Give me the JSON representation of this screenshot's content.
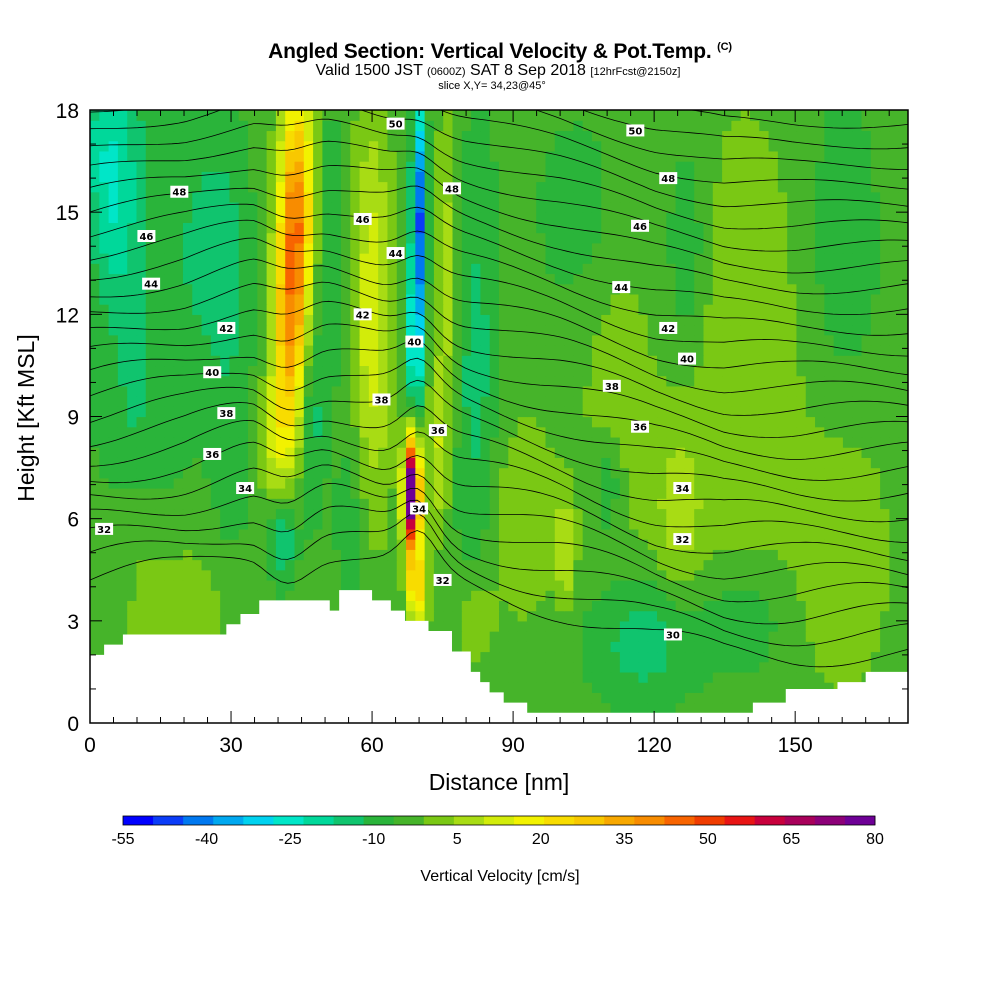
{
  "title": {
    "main": "Angled Section: Vertical Velocity & Pot.Temp.",
    "main_unit": "(C)",
    "valid_prefix": "Valid 1500 JST",
    "valid_utc": "(0600Z)",
    "valid_date": "SAT 8 Sep 2018",
    "forecast": "[12hrFcst@2150z]",
    "slice": "slice X,Y= 34,23@45°"
  },
  "chart_data": {
    "type": "heatmap",
    "title": "Angled Section: Vertical Velocity & Pot.Temp.",
    "xlabel": "Distance [nm]",
    "ylabel": "Height [Kft MSL]",
    "xlim": [
      0,
      174
    ],
    "ylim": [
      0,
      18
    ],
    "x_ticks": [
      0,
      30,
      60,
      90,
      120,
      150
    ],
    "y_ticks": [
      0,
      3,
      6,
      9,
      12,
      15,
      18
    ],
    "colorbar": {
      "label": "Vertical Velocity [cm/s]",
      "tick_values": [
        -55,
        -40,
        -25,
        -10,
        5,
        20,
        35,
        50,
        65,
        80
      ],
      "colors": [
        "#0000ff",
        "#0a3cf8",
        "#0078f0",
        "#00a8f0",
        "#00d2f0",
        "#00e6c8",
        "#00d89a",
        "#10c46e",
        "#2ab43a",
        "#46b42a",
        "#7ac814",
        "#a8dc14",
        "#d2ec0a",
        "#f2f200",
        "#f8dc00",
        "#f8c800",
        "#f8a800",
        "#f88c00",
        "#f86400",
        "#f03c00",
        "#e81414",
        "#c8003c",
        "#a8005a",
        "#8c0078",
        "#6e0096"
      ]
    },
    "wind_field": [
      {
        "x": 2,
        "y": 17.5,
        "w": -10,
        "sx": 8,
        "sy": 2.5
      },
      {
        "x": 15,
        "y": 13,
        "w": -6,
        "sx": 10,
        "sy": 7
      },
      {
        "x": 5,
        "y": 15,
        "w": -14,
        "sx": 5,
        "sy": 3
      },
      {
        "x": 8,
        "y": 8,
        "w": -6,
        "sx": 7,
        "sy": 4
      },
      {
        "x": 20,
        "y": 3,
        "w": 8,
        "sx": 14,
        "sy": 2.5
      },
      {
        "x": 9,
        "y": 6,
        "w": 6,
        "sx": 6,
        "sy": 2
      },
      {
        "x": 30,
        "y": 10,
        "w": -6,
        "sx": 5,
        "sy": 8
      },
      {
        "x": 26,
        "y": 14,
        "w": -8,
        "sx": 6,
        "sy": 3
      },
      {
        "x": 44,
        "y": 15,
        "w": 40,
        "sx": 3.5,
        "sy": 4
      },
      {
        "x": 42,
        "y": 11,
        "w": 28,
        "sx": 3.5,
        "sy": 4
      },
      {
        "x": 39,
        "y": 8,
        "w": 10,
        "sx": 3,
        "sy": 2
      },
      {
        "x": 41,
        "y": 5.5,
        "w": -18,
        "sx": 3,
        "sy": 1.5
      },
      {
        "x": 47,
        "y": 9,
        "w": -12,
        "sx": 2.5,
        "sy": 3
      },
      {
        "x": 51,
        "y": 14,
        "w": -8,
        "sx": 3,
        "sy": 4
      },
      {
        "x": 60,
        "y": 12,
        "w": 18,
        "sx": 4,
        "sy": 6
      },
      {
        "x": 56,
        "y": 6,
        "w": -6,
        "sx": 4,
        "sy": 3
      },
      {
        "x": 70,
        "y": 15,
        "w": -40,
        "sx": 1.5,
        "sy": 3.5
      },
      {
        "x": 69,
        "y": 11,
        "w": -25,
        "sx": 1.5,
        "sy": 2.5
      },
      {
        "x": 68.5,
        "y": 6.8,
        "w": 95,
        "sx": 1.7,
        "sy": 1.6
      },
      {
        "x": 69.5,
        "y": 4,
        "w": 30,
        "sx": 2,
        "sy": 1.2
      },
      {
        "x": 74,
        "y": 8,
        "w": 12,
        "sx": 2,
        "sy": 2.5
      },
      {
        "x": 76,
        "y": 13,
        "w": 12,
        "sx": 2.5,
        "sy": 5
      },
      {
        "x": 82,
        "y": 10,
        "w": -10,
        "sx": 5,
        "sy": 7
      },
      {
        "x": 82,
        "y": 3,
        "w": 10,
        "sx": 4,
        "sy": 1.5
      },
      {
        "x": 92,
        "y": 6,
        "w": 8,
        "sx": 8,
        "sy": 3
      },
      {
        "x": 101,
        "y": 5,
        "w": 14,
        "sx": 2,
        "sy": 1.5
      },
      {
        "x": 105,
        "y": 15,
        "w": -6,
        "sx": 10,
        "sy": 3
      },
      {
        "x": 112,
        "y": 10,
        "w": 6,
        "sx": 8,
        "sy": 6
      },
      {
        "x": 110,
        "y": 7,
        "w": -10,
        "sx": 3,
        "sy": 1.5
      },
      {
        "x": 118,
        "y": 2.5,
        "w": -12,
        "sx": 12,
        "sy": 2
      },
      {
        "x": 125,
        "y": 6,
        "w": 10,
        "sx": 6,
        "sy": 3
      },
      {
        "x": 127,
        "y": 14,
        "w": -8,
        "sx": 4,
        "sy": 3
      },
      {
        "x": 140,
        "y": 10,
        "w": 8,
        "sx": 12,
        "sy": 8
      },
      {
        "x": 140,
        "y": 3,
        "w": -8,
        "sx": 10,
        "sy": 2
      },
      {
        "x": 160,
        "y": 14,
        "w": -6,
        "sx": 8,
        "sy": 5
      },
      {
        "x": 160,
        "y": 5,
        "w": 8,
        "sx": 10,
        "sy": 4
      }
    ],
    "terrain": [
      [
        0,
        2
      ],
      [
        3,
        2.3
      ],
      [
        7,
        2.6
      ],
      [
        29,
        2.9
      ],
      [
        32,
        3.2
      ],
      [
        36,
        3.6
      ],
      [
        48,
        3.6
      ],
      [
        51,
        3.3
      ],
      [
        53,
        3.9
      ],
      [
        58,
        3.9
      ],
      [
        60,
        3.6
      ],
      [
        64,
        3.3
      ],
      [
        67,
        3.0
      ],
      [
        72,
        2.7
      ],
      [
        77,
        2.1
      ],
      [
        81,
        1.5
      ],
      [
        83,
        1.2
      ],
      [
        85,
        0.9
      ],
      [
        88,
        0.6
      ],
      [
        93,
        0.3
      ],
      [
        130,
        0.3
      ],
      [
        141,
        0.6
      ],
      [
        148,
        1.0
      ],
      [
        159,
        1.2
      ],
      [
        165,
        1.5
      ],
      [
        174,
        1.7
      ]
    ],
    "isentropes_base": [
      [
        0,
        4.2
      ],
      [
        20,
        4.6
      ],
      [
        35,
        5.1
      ],
      [
        50,
        5.0
      ],
      [
        60,
        4.7
      ],
      [
        70,
        4.4
      ],
      [
        80,
        4.0
      ],
      [
        100,
        3.3
      ],
      [
        120,
        2.5
      ],
      [
        135,
        2.1
      ],
      [
        150,
        2.0
      ],
      [
        174,
        2.0
      ]
    ],
    "isentrope_count": 30,
    "contour_labels": [
      {
        "t": "50",
        "x": 65,
        "y": 17.6
      },
      {
        "t": "48",
        "x": 19,
        "y": 15.6
      },
      {
        "t": "48",
        "x": 77,
        "y": 15.7
      },
      {
        "t": "50",
        "x": 116,
        "y": 17.4
      },
      {
        "t": "48",
        "x": 123,
        "y": 16.0
      },
      {
        "t": "46",
        "x": 12,
        "y": 14.3
      },
      {
        "t": "46",
        "x": 58,
        "y": 14.8
      },
      {
        "t": "46",
        "x": 117,
        "y": 14.6
      },
      {
        "t": "44",
        "x": 13,
        "y": 12.9
      },
      {
        "t": "44",
        "x": 65,
        "y": 13.8
      },
      {
        "t": "44",
        "x": 113,
        "y": 12.8
      },
      {
        "t": "42",
        "x": 29,
        "y": 11.6
      },
      {
        "t": "42",
        "x": 58,
        "y": 12.0
      },
      {
        "t": "42",
        "x": 123,
        "y": 11.6
      },
      {
        "t": "40",
        "x": 26,
        "y": 10.3
      },
      {
        "t": "40",
        "x": 69,
        "y": 11.2
      },
      {
        "t": "40",
        "x": 127,
        "y": 10.7
      },
      {
        "t": "38",
        "x": 29,
        "y": 9.1
      },
      {
        "t": "38",
        "x": 62,
        "y": 9.5
      },
      {
        "t": "38",
        "x": 111,
        "y": 9.9
      },
      {
        "t": "36",
        "x": 26,
        "y": 7.9
      },
      {
        "t": "36",
        "x": 74,
        "y": 8.6
      },
      {
        "t": "36",
        "x": 117,
        "y": 8.7
      },
      {
        "t": "34",
        "x": 33,
        "y": 6.9
      },
      {
        "t": "34",
        "x": 70,
        "y": 6.3
      },
      {
        "t": "34",
        "x": 126,
        "y": 6.9
      },
      {
        "t": "32",
        "x": 3,
        "y": 5.7
      },
      {
        "t": "32",
        "x": 75,
        "y": 4.2
      },
      {
        "t": "32",
        "x": 126,
        "y": 5.4
      },
      {
        "t": "30",
        "x": 124,
        "y": 2.6
      }
    ]
  }
}
